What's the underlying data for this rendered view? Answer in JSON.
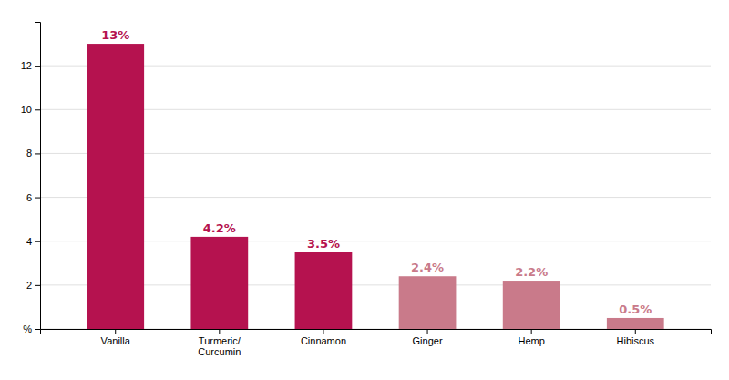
{
  "chart_data": {
    "type": "bar",
    "categories": [
      "Vanilla",
      "Turmeric/\nCurcumin",
      "Cinnamon",
      "Ginger",
      "Hemp",
      "Hibiscus"
    ],
    "values": [
      13.0,
      4.2,
      3.5,
      2.4,
      2.2,
      0.5
    ],
    "value_labels": [
      "13%",
      "4.2%",
      "3.5%",
      "2.4%",
      "2.2%",
      "0.5%"
    ],
    "data_labels": true,
    "colors": [
      "#B5124F",
      "#B5124F",
      "#B5124F",
      "#C97A8A",
      "#C97A8A",
      "#C97A8A"
    ],
    "ylim": [
      0,
      14
    ],
    "yticks": [
      {
        "value": 0,
        "label": "%"
      },
      2,
      4,
      6,
      8,
      10,
      12
    ],
    "grid": true
  }
}
